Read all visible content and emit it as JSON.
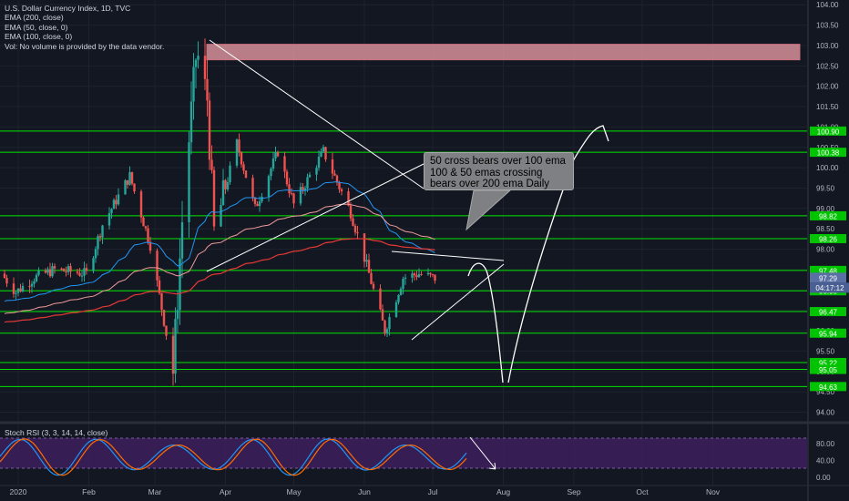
{
  "legend": {
    "title": "U.S. Dollar Currency Index, 1D, TVC",
    "ema200": "EMA (200, close)",
    "ema50": "EMA (50, close, 0)",
    "ema100": "EMA (100, close, 0)",
    "vol": "Vol: No volume is provided by the data vendor."
  },
  "rsi_legend": "Stoch RSI (3, 3, 14, 14, close)",
  "callout": {
    "line1": "50 cross bears over 100 ema",
    "line2": "100 & 50 emas crossing",
    "line3": "bears over 200 ema Daily"
  },
  "colors": {
    "background": "#131722",
    "bull": "#26a69a",
    "bear": "#ef5350",
    "level_line": "#00e600",
    "level_label_bg": "#00c400",
    "zone": "#f0a0a8",
    "rsi_band": "#3d1f5c",
    "ema200": "#e53935",
    "ema100": "#ef9a9a",
    "ema50": "#2196f3"
  },
  "chart_data": {
    "type": "candlestick",
    "title": "U.S. Dollar Currency Index, 1D, TVC",
    "x_tick_labels": [
      "2020",
      "Feb",
      "Mar",
      "Apr",
      "May",
      "Jun",
      "Jul",
      "Aug",
      "Sep",
      "Oct",
      "Nov"
    ],
    "y_tick_labels": [
      "104.00",
      "103.50",
      "103.00",
      "102.50",
      "102.00",
      "101.50",
      "101.00",
      "100.50",
      "100.00",
      "99.50",
      "99.00",
      "98.50",
      "98.00",
      "97.50",
      "97.00",
      "96.50",
      "96.00",
      "95.50",
      "95.00",
      "94.50",
      "94.00"
    ],
    "ylim": [
      93.9,
      104.05
    ],
    "horizontal_levels": [
      {
        "label": "100.90",
        "value": 100.9
      },
      {
        "label": "100.38",
        "value": 100.38
      },
      {
        "label": "98.82",
        "value": 98.82
      },
      {
        "label": "98.26",
        "value": 98.26
      },
      {
        "label": "97.48",
        "value": 97.48
      },
      {
        "label": "96.98",
        "value": 96.98
      },
      {
        "label": "96.47",
        "value": 96.47
      },
      {
        "label": "95.94",
        "value": 95.94
      },
      {
        "label": "95.22",
        "value": 95.22
      },
      {
        "label": "95.05",
        "value": 95.05
      },
      {
        "label": "94.63",
        "value": 94.63
      }
    ],
    "price_label": {
      "value": "97.29",
      "value_num": 97.29,
      "countdown": "04:17:12"
    },
    "resistance_zone": {
      "from": 102.65,
      "to": 103.03
    },
    "ohlc": [
      {
        "date": "2019-12-26",
        "o": 97.4,
        "h": 97.5,
        "l": 97.2,
        "c": 97.3
      },
      {
        "date": "2019-12-31",
        "o": 97.3,
        "h": 97.4,
        "l": 96.9,
        "c": 96.95
      },
      {
        "date": "2020-01-08",
        "o": 96.8,
        "h": 97.4,
        "l": 96.7,
        "c": 97.3
      },
      {
        "date": "2020-01-17",
        "o": 97.2,
        "h": 97.6,
        "l": 97.1,
        "c": 97.5
      },
      {
        "date": "2020-01-31",
        "o": 98.0,
        "h": 98.2,
        "l": 97.4,
        "c": 97.4
      },
      {
        "date": "2020-02-07",
        "o": 97.7,
        "h": 98.7,
        "l": 97.6,
        "c": 98.6
      },
      {
        "date": "2020-02-19",
        "o": 99.4,
        "h": 99.9,
        "l": 99.3,
        "c": 99.8
      },
      {
        "date": "2020-02-28",
        "o": 99.1,
        "h": 99.2,
        "l": 98.0,
        "c": 98.1
      },
      {
        "date": "2020-03-09",
        "o": 96.2,
        "h": 96.4,
        "l": 94.65,
        "c": 95.0
      },
      {
        "date": "2020-03-13",
        "o": 97.0,
        "h": 98.9,
        "l": 96.8,
        "c": 98.7
      },
      {
        "date": "2020-03-19",
        "o": 101.0,
        "h": 102.9,
        "l": 100.5,
        "c": 102.7
      },
      {
        "date": "2020-03-20",
        "o": 102.7,
        "h": 103.0,
        "l": 101.8,
        "c": 102.7
      },
      {
        "date": "2020-03-24",
        "o": 102.6,
        "h": 102.8,
        "l": 101.5,
        "c": 101.7
      },
      {
        "date": "2020-03-27",
        "o": 100.4,
        "h": 100.6,
        "l": 98.2,
        "c": 98.4
      },
      {
        "date": "2020-04-06",
        "o": 100.4,
        "h": 100.8,
        "l": 100.2,
        "c": 100.6
      },
      {
        "date": "2020-04-14",
        "o": 99.4,
        "h": 99.5,
        "l": 98.9,
        "c": 99.0
      },
      {
        "date": "2020-04-24",
        "o": 100.4,
        "h": 100.8,
        "l": 100.2,
        "c": 100.4
      },
      {
        "date": "2020-05-01",
        "o": 99.4,
        "h": 99.6,
        "l": 98.9,
        "c": 99.1
      },
      {
        "date": "2020-05-14",
        "o": 100.1,
        "h": 100.5,
        "l": 99.9,
        "c": 100.4
      },
      {
        "date": "2020-05-26",
        "o": 99.2,
        "h": 99.3,
        "l": 98.9,
        "c": 98.9
      },
      {
        "date": "2020-06-02",
        "o": 97.7,
        "h": 98.0,
        "l": 97.4,
        "c": 97.6
      },
      {
        "date": "2020-06-10",
        "o": 96.2,
        "h": 96.4,
        "l": 95.7,
        "c": 96.0
      },
      {
        "date": "2020-06-18",
        "o": 96.9,
        "h": 97.4,
        "l": 96.8,
        "c": 97.3
      },
      {
        "date": "2020-06-25",
        "o": 97.2,
        "h": 97.5,
        "l": 97.1,
        "c": 97.4
      },
      {
        "date": "2020-07-02",
        "o": 97.4,
        "h": 97.5,
        "l": 97.1,
        "c": 97.29
      }
    ],
    "series": [
      {
        "name": "EMA (200, close)",
        "color": "#e53935"
      },
      {
        "name": "EMA (50, close, 0)",
        "color": "#2196f3"
      },
      {
        "name": "EMA (100, close, 0)",
        "color": "#ef9a9a"
      }
    ],
    "stoch_rsi": {
      "title": "Stoch RSI (3, 3, 14, 14, close)",
      "y_tick_labels": [
        "80.00",
        "40.00",
        "0.00"
      ],
      "ylim": [
        0,
        100
      ],
      "band": [
        20,
        80
      ]
    }
  }
}
